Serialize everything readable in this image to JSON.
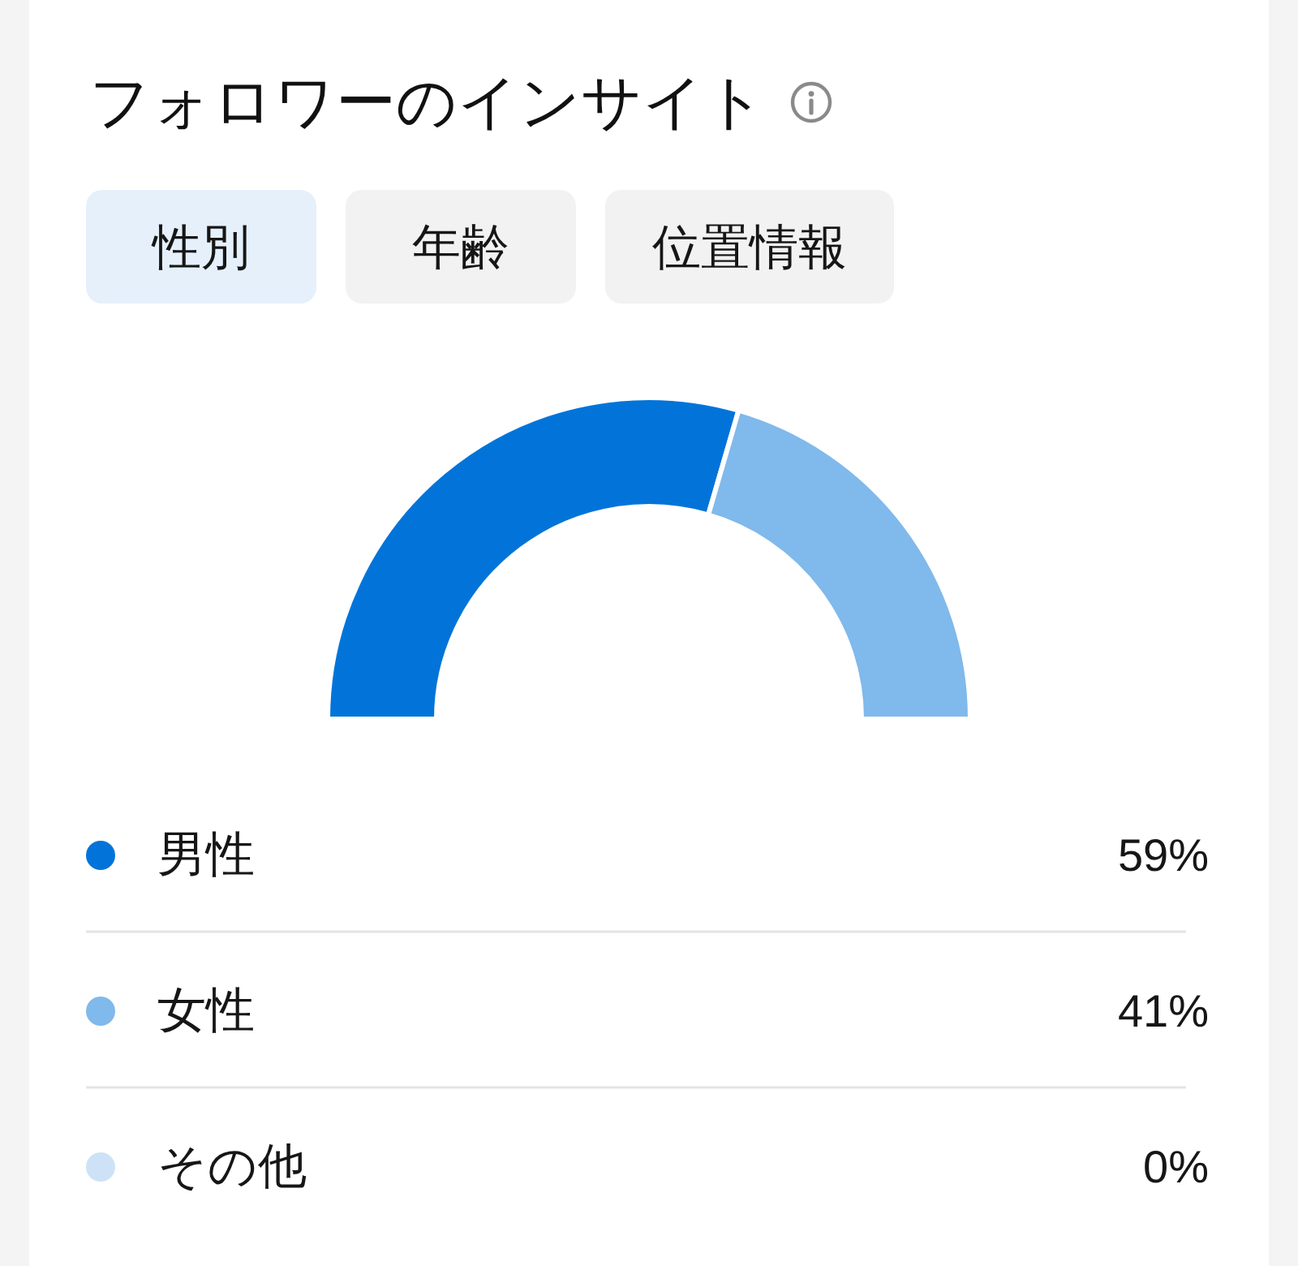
{
  "chart_data": {
    "type": "donut",
    "title": "フォロワーのインサイト",
    "annotations": [
      "性別",
      "年齢",
      "位置情報"
    ],
    "categories": [
      "男性",
      "女性",
      "その他"
    ],
    "values": [
      59,
      41,
      0
    ],
    "colors": [
      "#0274d9",
      "#80b9eb",
      "#cde2f7"
    ],
    "value_labels": [
      "59%",
      "41%",
      "0%"
    ],
    "legend": "bottom"
  }
}
